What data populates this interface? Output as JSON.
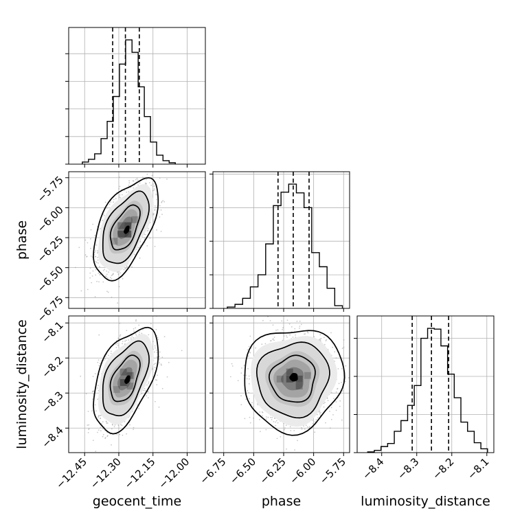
{
  "chart_data": {
    "type": "corner",
    "parameters": [
      "geocent_time",
      "phase",
      "luminosity_distance"
    ],
    "colors": {
      "line": "#000000",
      "grid": "#b0b0b0",
      "scatter": "#9a9a9a"
    },
    "grid": true,
    "axes": {
      "geocent_time": {
        "label": "geocent_time",
        "range": [
          -12.52,
          -11.92
        ],
        "ticks": [
          -12.45,
          -12.3,
          -12.15,
          -12.0
        ],
        "tick_labels": [
          "−12.45",
          "−12.30",
          "−12.15",
          "−12.00"
        ]
      },
      "phase": {
        "label": "phase",
        "range": [
          -6.84,
          -5.7
        ],
        "ticks": [
          -6.75,
          -6.5,
          -6.25,
          -6.0,
          -5.75
        ],
        "tick_labels": [
          "−6.75",
          "−6.50",
          "−6.25",
          "−6.00",
          "−5.75"
        ]
      },
      "luminosity_distance": {
        "label": "luminosity_distance",
        "range": [
          -8.47,
          -8.08
        ],
        "ticks": [
          -8.4,
          -8.3,
          -8.2,
          -8.1
        ],
        "tick_labels": [
          "−8.4",
          "−8.3",
          "−8.2",
          "−8.1"
        ]
      }
    },
    "histograms": [
      {
        "parameter": "geocent_time",
        "bins": [
          -12.46,
          -12.433,
          -12.406,
          -12.378,
          -12.351,
          -12.324,
          -12.297,
          -12.27,
          -12.242,
          -12.215,
          -12.188,
          -12.161,
          -12.134,
          -12.106,
          -12.079,
          -12.052
        ],
        "counts": [
          3,
          7,
          15,
          37,
          62,
          98,
          145,
          180,
          162,
          112,
          69,
          32,
          13,
          5,
          2
        ],
        "quantiles": [
          -12.327,
          -12.271,
          -12.21
        ]
      },
      {
        "parameter": "phase",
        "bins": [
          -6.72,
          -6.656,
          -6.592,
          -6.528,
          -6.464,
          -6.4,
          -6.336,
          -6.272,
          -6.208,
          -6.144,
          -6.08,
          -6.016,
          -5.952,
          -5.888,
          -5.824,
          -5.76
        ],
        "counts": [
          2,
          6,
          15,
          32,
          50,
          96,
          153,
          173,
          185,
          172,
          150,
          83,
          62,
          30,
          4
        ],
        "quantiles": [
          -6.297,
          -6.17,
          -6.038
        ]
      },
      {
        "parameter": "luminosity_distance",
        "bins": [
          -8.44,
          -8.421,
          -8.402,
          -8.383,
          -8.364,
          -8.345,
          -8.326,
          -8.307,
          -8.288,
          -8.269,
          -8.25,
          -8.231,
          -8.212,
          -8.193,
          -8.174,
          -8.155,
          -8.136,
          -8.117,
          -8.098
        ],
        "counts": [
          1,
          3,
          8,
          12,
          28,
          42,
          62,
          88,
          150,
          163,
          162,
          140,
          103,
          72,
          40,
          28,
          13,
          5
        ],
        "quantiles": [
          -8.313,
          -8.258,
          -8.209
        ]
      }
    ],
    "joint": [
      {
        "x": "geocent_time",
        "y": "phase",
        "center": [
          -12.272,
          -6.17
        ],
        "sigma": [
          0.058,
          0.17
        ],
        "rho": 0.55,
        "cells": [
          [
            -12.29,
            -6.22,
            0.65
          ],
          [
            -12.26,
            -6.15,
            0.7
          ],
          [
            -12.26,
            -6.22,
            0.85
          ],
          [
            -12.29,
            -6.15,
            0.5
          ],
          [
            -12.23,
            -6.1,
            0.4
          ],
          [
            -12.32,
            -6.28,
            0.35
          ]
        ],
        "peak": [
          -12.265,
          -6.185
        ]
      },
      {
        "x": "geocent_time",
        "y": "luminosity_distance",
        "center": [
          -12.272,
          -8.26
        ],
        "sigma": [
          0.058,
          0.06
        ],
        "rho": 0.5,
        "cells": [
          [
            -12.28,
            -8.27,
            0.65
          ],
          [
            -12.25,
            -8.25,
            0.55
          ],
          [
            -12.28,
            -8.24,
            0.45
          ],
          [
            -12.25,
            -8.28,
            0.4
          ],
          [
            -12.31,
            -8.29,
            0.3
          ]
        ],
        "peak": [
          -12.262,
          -8.262
        ]
      },
      {
        "x": "phase",
        "y": "luminosity_distance",
        "center": [
          -6.17,
          -8.26
        ],
        "sigma": [
          0.17,
          0.06
        ],
        "rho": 0.05,
        "cells": [
          [
            -6.2,
            -8.26,
            0.65
          ],
          [
            -6.12,
            -8.26,
            0.6
          ],
          [
            -6.2,
            -8.24,
            0.5
          ],
          [
            -6.12,
            -8.28,
            0.45
          ],
          [
            -6.28,
            -8.26,
            0.35
          ],
          [
            -6.05,
            -8.25,
            0.35
          ]
        ],
        "peak": [
          -6.165,
          -8.255
        ]
      }
    ]
  }
}
